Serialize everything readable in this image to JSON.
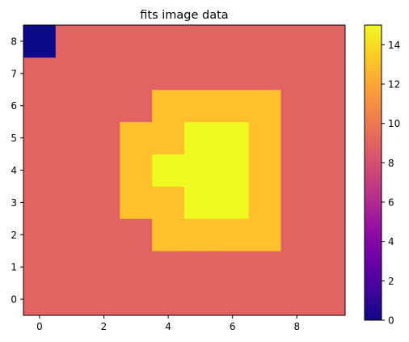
{
  "chart_data": {
    "type": "heatmap",
    "title": "fits image data",
    "xlabel": "",
    "ylabel": "",
    "colormap": "plasma",
    "x_ticks": [
      "0",
      "2",
      "4",
      "6",
      "8"
    ],
    "y_ticks": [
      "0",
      "1",
      "2",
      "3",
      "4",
      "5",
      "6",
      "7",
      "8"
    ],
    "colorbar_ticks": [
      "0",
      "2",
      "4",
      "6",
      "8",
      "10",
      "12",
      "14"
    ],
    "vmin": 0,
    "vmax": 15,
    "xlim": [
      -0.5,
      9.5
    ],
    "ylim": [
      -0.5,
      8.5
    ],
    "grid": false,
    "colorbar": "right",
    "rows_bottom_to_top": [
      [
        9,
        9,
        9,
        9,
        9,
        9,
        9,
        9,
        9,
        9
      ],
      [
        9,
        9,
        9,
        9,
        9,
        9,
        9,
        9,
        9,
        9
      ],
      [
        9,
        9,
        9,
        9,
        13,
        13,
        13,
        13,
        9,
        9
      ],
      [
        9,
        9,
        9,
        13,
        13,
        15,
        15,
        13,
        9,
        9
      ],
      [
        9,
        9,
        9,
        13,
        15,
        15,
        15,
        13,
        9,
        9
      ],
      [
        9,
        9,
        9,
        13,
        13,
        15,
        15,
        13,
        9,
        9
      ],
      [
        9,
        9,
        9,
        9,
        13,
        13,
        13,
        13,
        9,
        9
      ],
      [
        9,
        9,
        9,
        9,
        9,
        9,
        9,
        9,
        9,
        9
      ],
      [
        0,
        9,
        9,
        9,
        9,
        9,
        9,
        9,
        9,
        9
      ]
    ]
  }
}
